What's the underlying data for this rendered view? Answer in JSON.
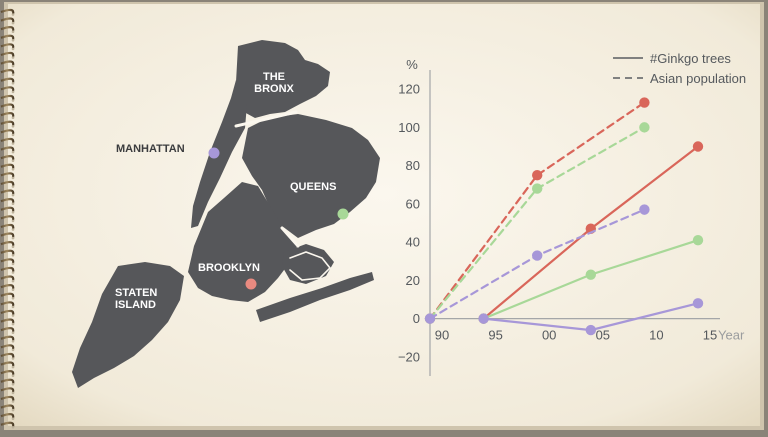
{
  "map": {
    "boroughs": [
      {
        "id": "bronx",
        "label_lines": [
          "THE",
          "BRONX"
        ]
      },
      {
        "id": "manhattan",
        "label_lines": [
          "MANHATTAN"
        ],
        "dot_color": "#a797d8"
      },
      {
        "id": "queens",
        "label_lines": [
          "QUEENS"
        ],
        "dot_color": "#a8d898"
      },
      {
        "id": "brooklyn",
        "label_lines": [
          "BROOKLYN"
        ],
        "dot_color": "#e98a80"
      },
      {
        "id": "staten-island",
        "label_lines": [
          "STATEN",
          "ISLAND"
        ]
      }
    ]
  },
  "chart_data": {
    "type": "line",
    "ylabel": "%",
    "xlabel": "Year",
    "x": [
      "90",
      "95",
      "00",
      "05",
      "10",
      "15"
    ],
    "yticks": [
      "120",
      "100",
      "80",
      "60",
      "40",
      "20",
      "0",
      "−20"
    ],
    "ylim": [
      -30,
      130
    ],
    "legend_placement": "top-right",
    "legend": [
      {
        "label": "#Ginkgo trees",
        "style": "solid"
      },
      {
        "label": "Asian population",
        "style": "dashed"
      }
    ],
    "series": [
      {
        "borough": "brooklyn",
        "metric": "ginkgo",
        "style": "solid",
        "color": "#d9665a",
        "points": [
          [
            "95",
            0
          ],
          [
            "05",
            47
          ],
          [
            "15",
            90
          ]
        ]
      },
      {
        "borough": "queens",
        "metric": "ginkgo",
        "style": "solid",
        "color": "#a8d898",
        "points": [
          [
            "95",
            0
          ],
          [
            "05",
            23
          ],
          [
            "15",
            41
          ]
        ]
      },
      {
        "borough": "manhattan",
        "metric": "ginkgo",
        "style": "solid",
        "color": "#a797d8",
        "points": [
          [
            "95",
            0
          ],
          [
            "05",
            -6
          ],
          [
            "15",
            8
          ]
        ]
      },
      {
        "borough": "brooklyn",
        "metric": "asian",
        "style": "dashed",
        "color": "#d9665a",
        "points": [
          [
            "90",
            0
          ],
          [
            "00",
            75
          ],
          [
            "10",
            113
          ]
        ]
      },
      {
        "borough": "queens",
        "metric": "asian",
        "style": "dashed",
        "color": "#a8d898",
        "points": [
          [
            "90",
            0
          ],
          [
            "00",
            68
          ],
          [
            "10",
            100
          ]
        ]
      },
      {
        "borough": "manhattan",
        "metric": "asian",
        "style": "dashed",
        "color": "#a797d8",
        "points": [
          [
            "90",
            0
          ],
          [
            "00",
            33
          ],
          [
            "10",
            57
          ]
        ]
      }
    ]
  }
}
